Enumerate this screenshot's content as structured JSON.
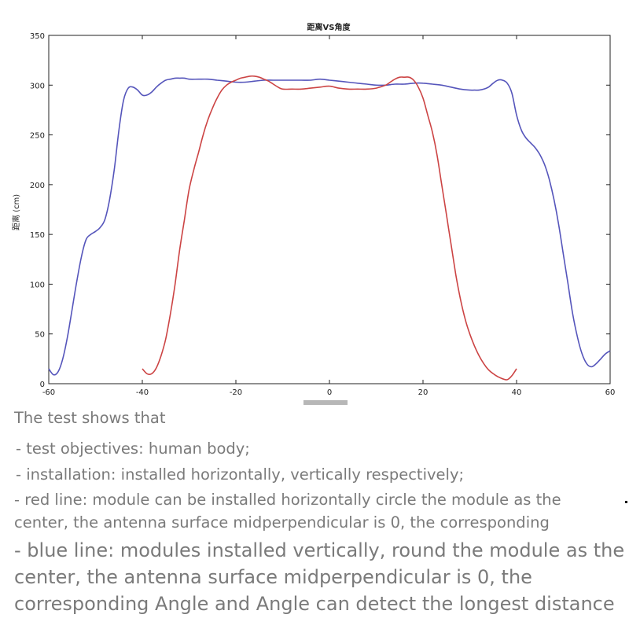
{
  "chart_data": {
    "type": "line",
    "title": "距离VS角度",
    "xlabel": "",
    "ylabel": "距离 (cm)",
    "xlim": [
      -60,
      60
    ],
    "ylim": [
      0,
      350
    ],
    "xticks": [
      -60,
      -40,
      -20,
      0,
      20,
      40,
      60
    ],
    "yticks": [
      0,
      50,
      100,
      150,
      200,
      250,
      300,
      350
    ],
    "grid": false,
    "series": [
      {
        "color": "#5555bb",
        "x": [
          -60,
          -59,
          -58,
          -57,
          -56,
          -55,
          -54,
          -53,
          -52,
          -51,
          -50,
          -49,
          -48,
          -47,
          -46,
          -45,
          -44,
          -43,
          -42,
          -41,
          -40,
          -39,
          -38,
          -37,
          -36,
          -35,
          -34,
          -33,
          -32,
          -31,
          -30,
          -28,
          -26,
          -24,
          -22,
          -20,
          -18,
          -16,
          -14,
          -12,
          -10,
          -8,
          -6,
          -4,
          -2,
          0,
          2,
          4,
          6,
          8,
          10,
          12,
          14,
          16,
          18,
          20,
          22,
          24,
          26,
          28,
          30,
          31,
          32,
          33,
          34,
          35,
          36,
          37,
          38,
          39,
          40,
          41,
          42,
          43,
          44,
          45,
          46,
          47,
          48,
          49,
          50,
          51,
          52,
          53,
          54,
          55,
          56,
          57,
          58,
          59,
          60
        ],
        "values": [
          15,
          9,
          12,
          25,
          47,
          75,
          103,
          128,
          145,
          150,
          153,
          157,
          165,
          185,
          215,
          255,
          285,
          297,
          298,
          295,
          290,
          290,
          293,
          298,
          302,
          305,
          306,
          307,
          307,
          307,
          306,
          306,
          306,
          305,
          304,
          303,
          303,
          304,
          305,
          305,
          305,
          305,
          305,
          305,
          306,
          305,
          304,
          303,
          302,
          301,
          300,
          300,
          301,
          301,
          302,
          302,
          301,
          300,
          298,
          296,
          295,
          295,
          295,
          296,
          298,
          302,
          305,
          305,
          302,
          292,
          270,
          255,
          247,
          242,
          237,
          230,
          220,
          205,
          185,
          160,
          130,
          100,
          70,
          47,
          30,
          20,
          17,
          20,
          25,
          30,
          33
        ]
      },
      {
        "color": "#cc4444",
        "x": [
          -40,
          -39,
          -38,
          -37,
          -36,
          -35,
          -34,
          -33,
          -32,
          -31,
          -30,
          -29,
          -28,
          -27,
          -26,
          -25,
          -24,
          -23,
          -22,
          -21,
          -20,
          -19,
          -18,
          -17,
          -16,
          -15,
          -14,
          -13,
          -12,
          -11,
          -10,
          -8,
          -6,
          -4,
          -2,
          0,
          2,
          4,
          6,
          8,
          10,
          12,
          13,
          14,
          15,
          16,
          17,
          18,
          19,
          20,
          21,
          22,
          23,
          24,
          25,
          26,
          27,
          28,
          29,
          30,
          31,
          32,
          33,
          34,
          35,
          36,
          37,
          38,
          39,
          40
        ],
        "values": [
          15,
          10,
          10,
          16,
          28,
          45,
          70,
          100,
          135,
          165,
          195,
          215,
          232,
          250,
          265,
          277,
          287,
          295,
          300,
          303,
          305,
          307,
          308,
          309,
          309,
          308,
          306,
          304,
          301,
          298,
          296,
          296,
          296,
          297,
          298,
          299,
          297,
          296,
          296,
          296,
          297,
          300,
          303,
          306,
          308,
          308,
          308,
          305,
          298,
          287,
          270,
          253,
          230,
          200,
          170,
          140,
          110,
          85,
          65,
          50,
          38,
          28,
          20,
          14,
          10,
          7,
          5,
          4,
          8,
          15
        ]
      }
    ]
  },
  "notes": [
    "The test shows that",
    " - test objectives: human body;",
    " - installation: installed horizontally, vertically respectively;",
    "- red line: module can be installed horizontally circle the module as the",
    "center, the antenna surface midperpendicular is 0, the corresponding",
    "- blue line: modules installed vertically, round the module as the",
    "center, the antenna surface midperpendicular is 0, the",
    "corresponding Angle and Angle can detect the longest distance"
  ]
}
